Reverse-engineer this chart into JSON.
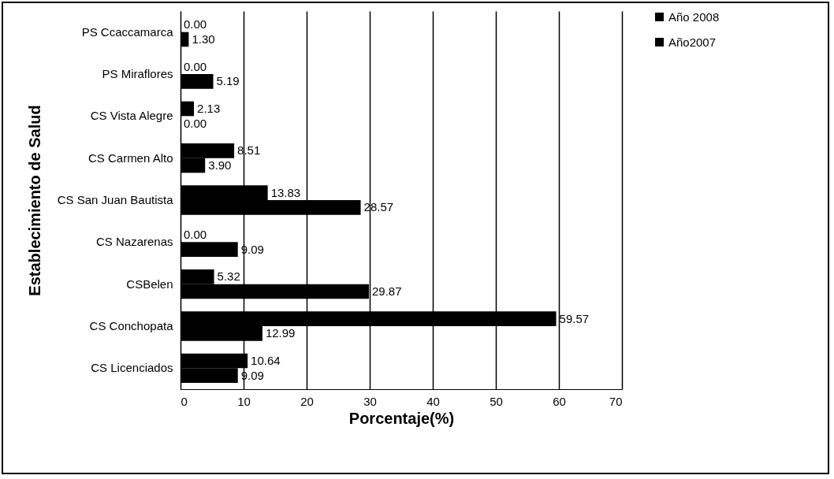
{
  "chart_data": {
    "type": "bar",
    "orientation": "horizontal",
    "xlabel": "Porcentaje(%)",
    "ylabel": "Establecimiento de Salud",
    "categories": [
      "PS Ccaccamarca",
      "PS Miraflores",
      "CS Vista Alegre",
      "CS Carmen Alto",
      "CS San Juan Bautista",
      "CS Nazarenas",
      "CSBelen",
      "CS Conchopata",
      "CS Licenciados"
    ],
    "series": [
      {
        "name": "Año 2008",
        "color": "#000000",
        "values": [
          0,
          0,
          2.13,
          8.51,
          13.83,
          0,
          5.32,
          59.57,
          10.64
        ],
        "value_labels": [
          "0.00",
          "0.00",
          "2.13",
          "8.51",
          "13.83",
          "0.00",
          "5.32",
          "59.57",
          "10.64"
        ]
      },
      {
        "name": "Año2007",
        "color": "#000000",
        "values": [
          1.3,
          5.19,
          0,
          3.9,
          28.57,
          9.09,
          29.87,
          12.99,
          9.09
        ],
        "value_labels": [
          "1.30",
          "5.19",
          "0.00",
          "3.90",
          "28.57",
          "9.09",
          "29.87",
          "12.99",
          "9.09"
        ]
      }
    ],
    "xlim": [
      0,
      70
    ],
    "xticks": [
      0,
      10,
      20,
      30,
      40,
      50,
      60,
      70
    ],
    "grid": "x",
    "legend": "right"
  }
}
